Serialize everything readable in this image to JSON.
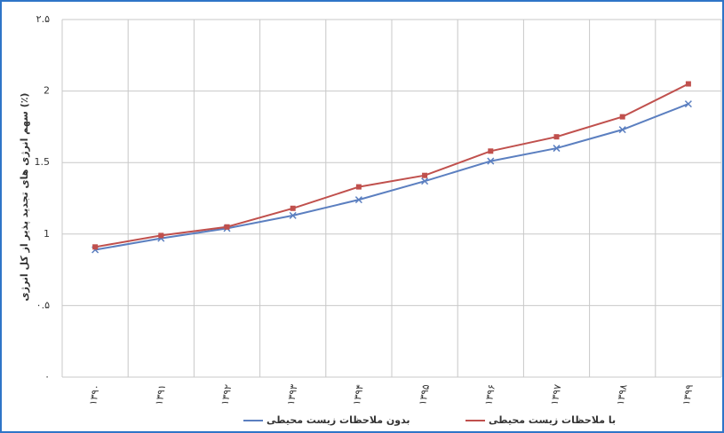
{
  "chart_data": {
    "type": "line",
    "ylabel": "سهم انرژی های تجدید پذیر از کل انرژی (٪)",
    "categories": [
      "۱۳۹۰",
      "۱۳۹۱",
      "۱۳۹۲",
      "۱۳۹۳",
      "۱۳۹۴",
      "۱۳۹۵",
      "۱۳۹۶",
      "۱۳۹۷",
      "۱۳۹۸",
      "۱۳۹۹"
    ],
    "series": [
      {
        "name": "بدون ملاحظات زیست محیطی",
        "color": "#5b7fc0",
        "marker": "x",
        "values": [
          0.89,
          0.97,
          1.04,
          1.13,
          1.24,
          1.37,
          1.51,
          1.6,
          1.73,
          1.91
        ]
      },
      {
        "name": "با ملاحظات زیست محیطی",
        "color": "#c0504d",
        "marker": "square",
        "values": [
          0.91,
          0.99,
          1.05,
          1.18,
          1.33,
          1.41,
          1.58,
          1.68,
          1.82,
          2.05
        ]
      }
    ],
    "ylim": [
      0,
      2.5
    ],
    "yticks": [
      {
        "value": 0,
        "label": "۰"
      },
      {
        "value": 0.5,
        "label": "۰.۵"
      },
      1,
      1.5,
      2,
      {
        "value": 2.5,
        "label": "۲.۵"
      }
    ],
    "grid": true
  }
}
